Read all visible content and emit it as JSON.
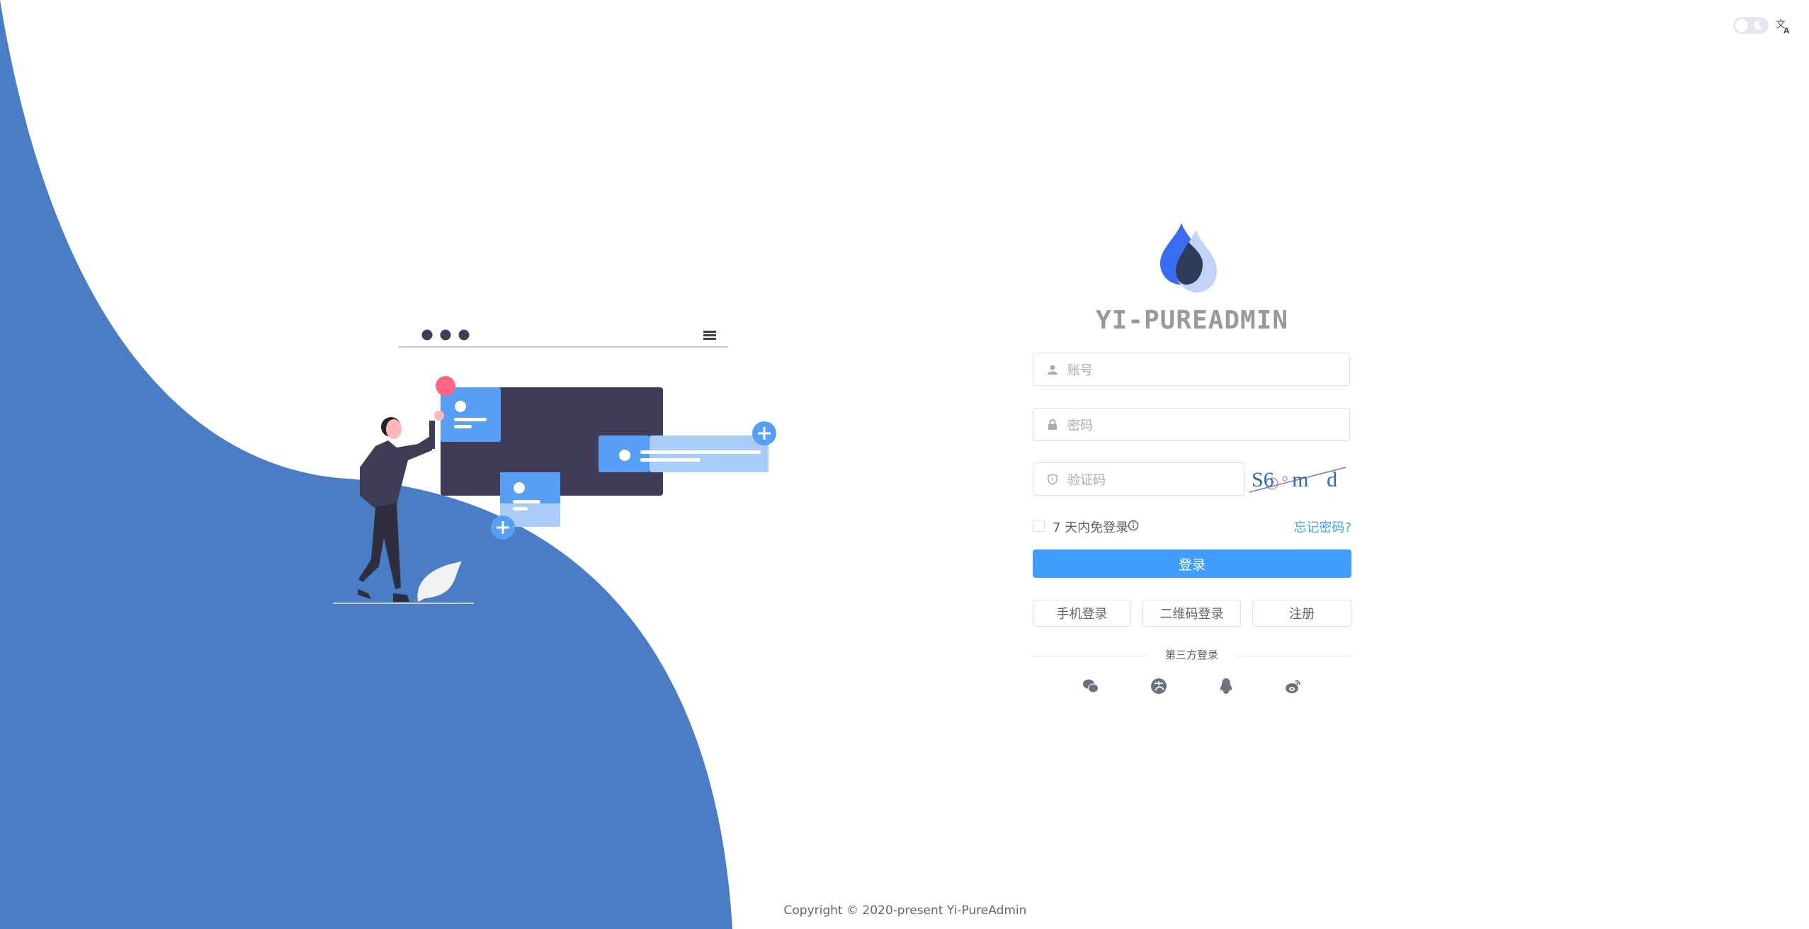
{
  "header": {
    "theme_toggle": {
      "state": "light",
      "icon": "moon-icon"
    },
    "language_icon": "translate-icon"
  },
  "brand": {
    "logo": "water-drop-logo",
    "title": "YI-PUREADMIN"
  },
  "login_form": {
    "username": {
      "placeholder": "账号",
      "value": "",
      "icon": "user-icon"
    },
    "password": {
      "placeholder": "密码",
      "value": "",
      "icon": "lock-icon"
    },
    "captcha": {
      "placeholder": "验证码",
      "value": "",
      "icon": "shield-icon",
      "image_text": "S6 m d"
    },
    "remember": {
      "label": "7 天内免登录",
      "checked": false,
      "info_icon": "info-icon"
    },
    "forgot_password": "忘记密码?",
    "submit": "登录",
    "alt_buttons": [
      "手机登录",
      "二维码登录",
      "注册"
    ],
    "third_party_label": "第三方登录",
    "third_party": [
      "wechat-icon",
      "alipay-icon",
      "qq-icon",
      "weibo-icon"
    ]
  },
  "footer": {
    "copyright": "Copyright © 2020-present Yi-PureAdmin"
  },
  "colors": {
    "primary": "#409eff",
    "wave": "#4b7dc4",
    "logo_blue": "#396cf0",
    "logo_dark": "#2f3c59",
    "logo_light": "#c3d2f8",
    "illustration_dark": "#3f3d56",
    "illustration_accent": "#ff6584"
  }
}
